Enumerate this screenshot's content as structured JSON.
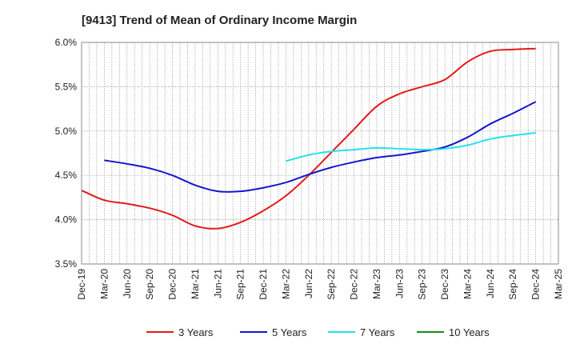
{
  "chart_data": {
    "type": "line",
    "title": "[9413]  Trend of Mean of Ordinary Income Margin",
    "xlabel": "",
    "ylabel": "",
    "categories": [
      "Dec-19",
      "Mar-20",
      "Jun-20",
      "Sep-20",
      "Dec-20",
      "Mar-21",
      "Jun-21",
      "Sep-21",
      "Dec-21",
      "Mar-22",
      "Jun-22",
      "Sep-22",
      "Dec-22",
      "Mar-23",
      "Jun-23",
      "Sep-23",
      "Dec-23",
      "Mar-24",
      "Jun-24",
      "Sep-24",
      "Dec-24",
      "Mar-25"
    ],
    "y_ticks": [
      "3.5%",
      "4.0%",
      "4.5%",
      "5.0%",
      "5.5%",
      "6.0%"
    ],
    "ylim": [
      3.5,
      6.0
    ],
    "grid": true,
    "legend_position": "bottom",
    "series": [
      {
        "name": "3 Years",
        "color": "#e31a1c",
        "values": [
          4.33,
          4.22,
          4.18,
          4.13,
          4.05,
          3.93,
          3.9,
          3.97,
          4.1,
          4.27,
          4.5,
          4.76,
          5.02,
          5.28,
          5.42,
          5.5,
          5.58,
          5.78,
          5.9,
          5.92,
          5.93,
          null
        ]
      },
      {
        "name": "5 Years",
        "color": "#1515cc",
        "values": [
          null,
          4.67,
          4.63,
          4.58,
          4.5,
          4.39,
          4.32,
          4.32,
          4.36,
          4.42,
          4.51,
          4.59,
          4.65,
          4.7,
          4.73,
          4.77,
          4.82,
          4.93,
          5.08,
          5.2,
          5.33,
          null
        ]
      },
      {
        "name": "7 Years",
        "color": "#22e3ee",
        "values": [
          null,
          null,
          null,
          null,
          null,
          null,
          null,
          null,
          null,
          4.66,
          4.73,
          4.77,
          4.79,
          4.81,
          4.8,
          4.79,
          4.8,
          4.84,
          4.91,
          4.95,
          4.98,
          null
        ]
      },
      {
        "name": "10 Years",
        "color": "#1a8c1a",
        "values": [
          null,
          null,
          null,
          null,
          null,
          null,
          null,
          null,
          null,
          null,
          null,
          null,
          null,
          null,
          null,
          null,
          null,
          null,
          null,
          null,
          null,
          null
        ]
      }
    ]
  }
}
